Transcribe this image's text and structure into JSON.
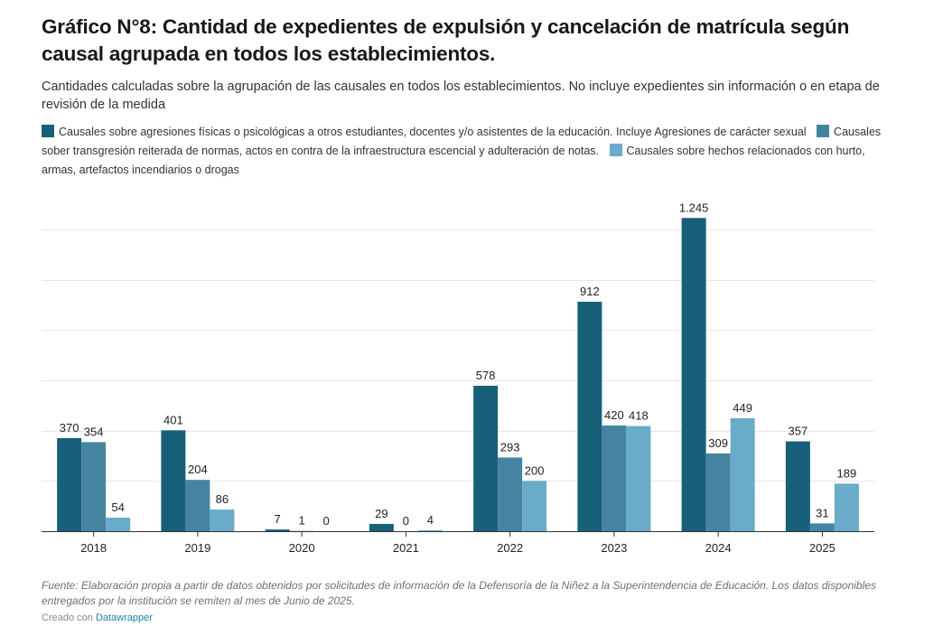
{
  "header": {
    "title": "Gráfico N°8: Cantidad de expedientes de expulsión y cancelación de matrícula según causal agrupada en todos los establecimientos.",
    "subtitle": "Cantidades calculadas sobre la agrupación de las causales en todos los establecimientos. No incluye expedientes sin información o en etapa de revisión de la medida"
  },
  "legend": [
    {
      "label": "Causales sobre agresiones físicas o psicológicas a otros estudiantes, docentes y/o asistentes de la educación. Incluye Agresiones de carácter sexual",
      "color": "#18607a"
    },
    {
      "label": "Causales sober transgresión reiterada de normas, actos en contra de la infraestructura escencial y adulteración de notas.",
      "color": "#4584a1"
    },
    {
      "label": "Causales sobre hechos relacionados con hurto, armas, artefactos incendiarios o drogas",
      "color": "#6aabc9"
    }
  ],
  "chart_data": {
    "type": "bar",
    "title": "Gráfico N°8: Cantidad de expedientes de expulsión y cancelación de matrícula según causal agrupada en todos los establecimientos.",
    "xlabel": "",
    "ylabel": "",
    "categories": [
      "2018",
      "2019",
      "2020",
      "2021",
      "2022",
      "2023",
      "2024",
      "2025"
    ],
    "series": [
      {
        "name": "Causales sobre agresiones físicas o psicológicas a otros estudiantes, docentes y/o asistentes de la educación. Incluye Agresiones de carácter sexual",
        "color": "#18607a",
        "values": [
          370,
          401,
          7,
          29,
          578,
          912,
          1245,
          357
        ],
        "labels": [
          "370",
          "401",
          "7",
          "29",
          "578",
          "912",
          "1.245",
          "357"
        ]
      },
      {
        "name": "Causales sober transgresión reiterada de normas, actos en contra de la infraestructura escencial y adulteración de notas.",
        "color": "#4584a1",
        "values": [
          354,
          204,
          1,
          0,
          293,
          420,
          309,
          31
        ],
        "labels": [
          "354",
          "204",
          "1",
          "0",
          "293",
          "420",
          "309",
          "31"
        ]
      },
      {
        "name": "Causales sobre hechos relacionados con hurto, armas, artefactos incendiarios o drogas",
        "color": "#6aabc9",
        "values": [
          54,
          86,
          0,
          4,
          200,
          418,
          449,
          189
        ],
        "labels": [
          "54",
          "86",
          "0",
          "4",
          "200",
          "418",
          "449",
          "189"
        ]
      }
    ],
    "ylim": [
      0,
      1200
    ],
    "gridlines": [
      200,
      400,
      600,
      800,
      1000,
      1200
    ],
    "grid": true,
    "y_tick_labels_visible": false,
    "legend_position": "top"
  },
  "footer": {
    "source": "Fuente: Elaboración propia a partir de datos obtenidos por solicitudes de información de la Defensoría de la Niñez a la Superintendencia de Educación. Los datos disponibles entregados por la institución se remiten al mes de Junio de 2025.",
    "credit_prefix": "Creado con",
    "credit_link": "Datawrapper"
  }
}
